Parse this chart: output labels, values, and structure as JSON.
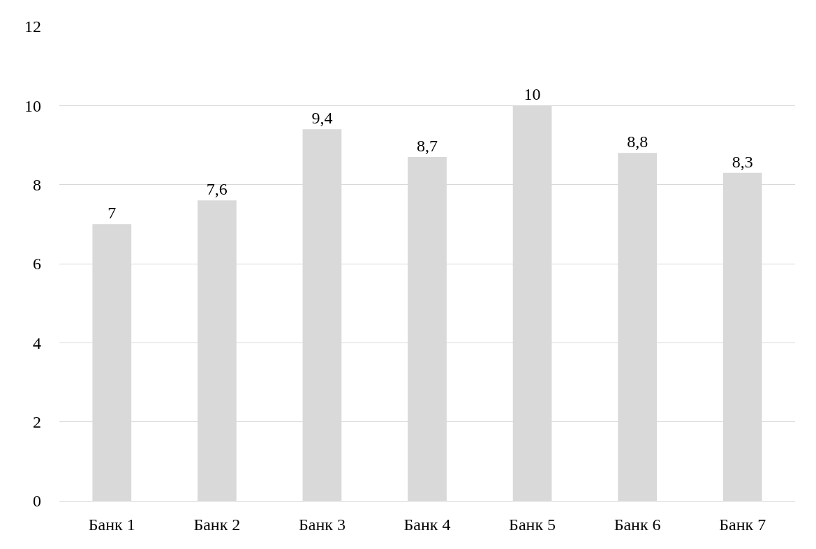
{
  "chart_data": {
    "type": "bar",
    "categories": [
      "Банк 1",
      "Банк 2",
      "Банк 3",
      "Банк 4",
      "Банк 5",
      "Банк 6",
      "Банк 7"
    ],
    "values": [
      7,
      7.6,
      9.4,
      8.7,
      10,
      8.8,
      8.3
    ],
    "value_labels": [
      "7",
      "7,6",
      "9,4",
      "8,7",
      "10",
      "8,8",
      "8,3"
    ],
    "color": "#d9d9d9",
    "ylim": [
      0,
      12
    ],
    "yticks": [
      0,
      2,
      4,
      6,
      8,
      10,
      12
    ],
    "grid": "y"
  }
}
